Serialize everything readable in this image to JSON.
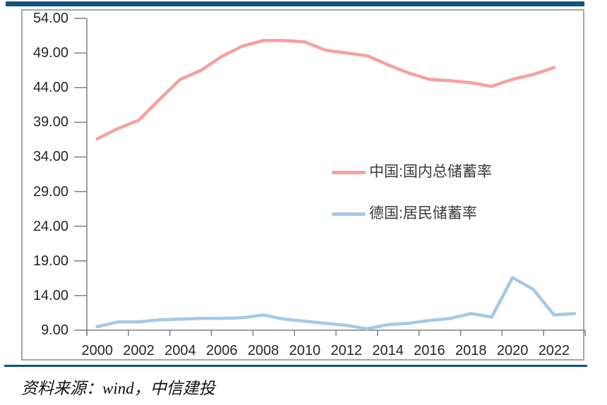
{
  "page": {
    "accent_bar_color": "#14527E",
    "frame_border_color": "#A6A6A6",
    "axis_color": "#808080",
    "label_color": "#262626",
    "source_note": "资料来源：wind，中信建投"
  },
  "chart_data": {
    "type": "line",
    "title": "",
    "xlabel": "",
    "ylabel": "",
    "grid": false,
    "ylim": [
      9,
      54
    ],
    "y_tick_step": 5,
    "y_tick_labels": [
      "54.00",
      "49.00",
      "44.00",
      "39.00",
      "34.00",
      "29.00",
      "24.00",
      "19.00",
      "14.00",
      "9.00"
    ],
    "x_years": [
      2000,
      2001,
      2002,
      2003,
      2004,
      2005,
      2006,
      2007,
      2008,
      2009,
      2010,
      2011,
      2012,
      2013,
      2014,
      2015,
      2016,
      2017,
      2018,
      2019,
      2020,
      2021,
      2022,
      2023
    ],
    "x_tick_labels": [
      "2000",
      "2002",
      "2004",
      "2006",
      "2008",
      "2010",
      "2012",
      "2014",
      "2016",
      "2018",
      "2020",
      "2022"
    ],
    "legend_position": "center-right",
    "series": [
      {
        "name": "中国:国内总储蓄率",
        "color": "#F6A0A0",
        "values": [
          36.6,
          38.1,
          39.3,
          42.3,
          45.2,
          46.5,
          48.5,
          50.0,
          50.8,
          50.8,
          50.6,
          49.4,
          49.0,
          48.6,
          47.3,
          46.1,
          45.2,
          45.0,
          44.7,
          44.2,
          45.2,
          45.9,
          46.9,
          null
        ]
      },
      {
        "name": "德国:居民储蓄率",
        "color": "#A4C9E8",
        "values": [
          9.5,
          10.2,
          10.2,
          10.5,
          10.6,
          10.7,
          10.7,
          10.8,
          11.2,
          10.6,
          10.3,
          10.0,
          9.7,
          9.2,
          9.8,
          10.0,
          10.4,
          10.7,
          11.4,
          10.9,
          16.6,
          14.9,
          11.2,
          11.4
        ]
      }
    ]
  }
}
